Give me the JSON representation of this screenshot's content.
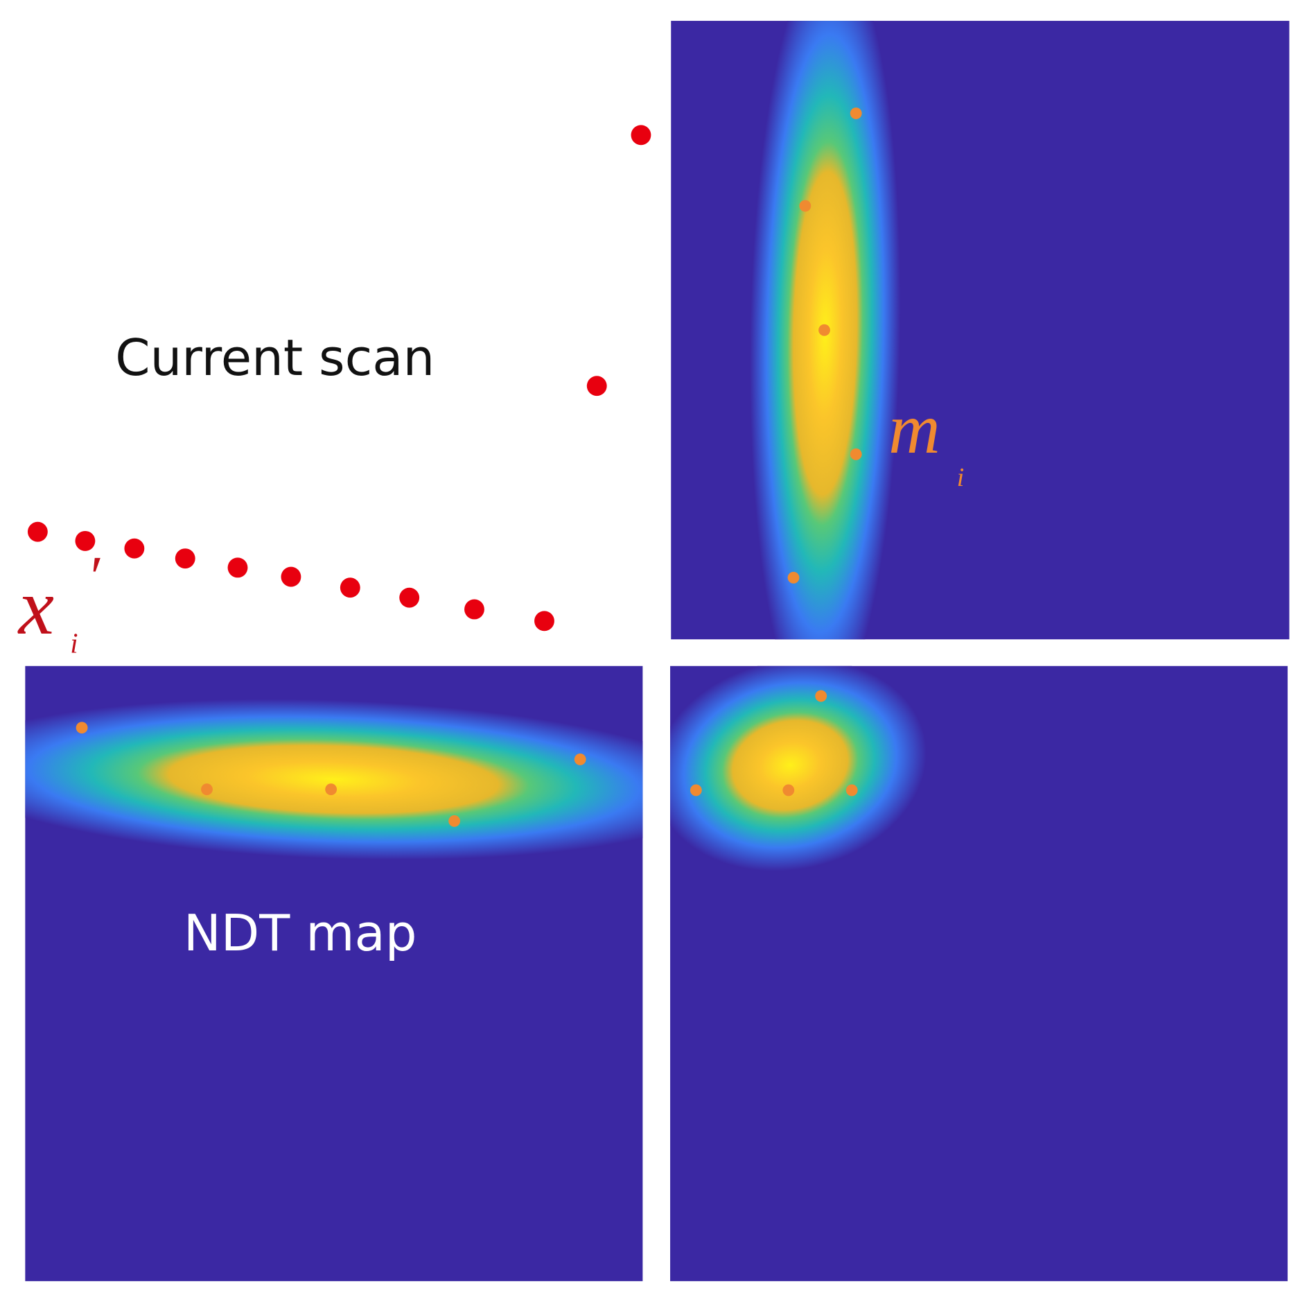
{
  "labels": {
    "current_scan": "Current scan",
    "ndt_map": "NDT map",
    "scan_point": {
      "symbol": "x",
      "prime": "′",
      "subscript": "i"
    },
    "map_point": {
      "symbol": "m",
      "subscript": "i"
    }
  }
}
